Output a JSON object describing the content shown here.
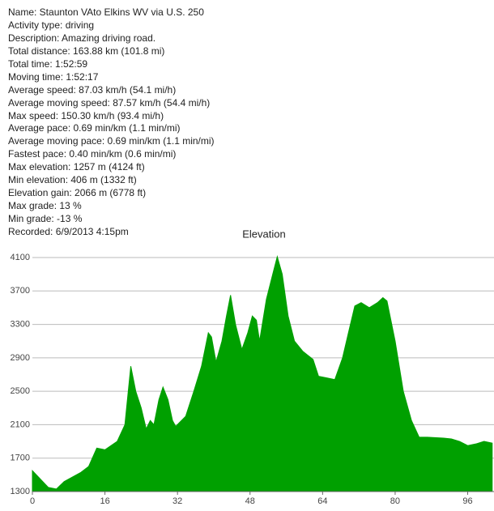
{
  "details": [
    "Name: Staunton VAto Elkins WV via U.S. 250",
    "Activity type: driving",
    "Description: Amazing driving road.",
    "Total distance: 163.88 km (101.8 mi)",
    "Total time: 1:52:59",
    "Moving time: 1:52:17",
    "Average speed: 87.03 km/h (54.1 mi/h)",
    "Average moving speed: 87.57 km/h (54.4 mi/h)",
    "Max speed: 150.30 km/h (93.4 mi/h)",
    "Average pace: 0.69 min/km (1.1 min/mi)",
    "Average moving pace: 0.69 min/km (1.1 min/mi)",
    "Fastest pace: 0.40 min/km (0.6 min/mi)",
    "Max elevation: 1257 m (4124 ft)",
    "Min elevation: 406 m (1332 ft)",
    "Elevation gain: 2066 m (6778 ft)",
    "Max grade: 13 %",
    "Min grade: -13 %",
    "Recorded: 6/9/2013 4:15pm"
  ],
  "chart_data": {
    "type": "area",
    "title": "Elevation",
    "color": "#00a000",
    "x": [
      0,
      3.5,
      5.3,
      7,
      10.7,
      12.4,
      14.2,
      16,
      18.7,
      20.4,
      21.7,
      22.8,
      24,
      25.1,
      26,
      26.8,
      27.9,
      28.8,
      29.9,
      30.9,
      31.6,
      33.8,
      35.6,
      37.3,
      38.8,
      39.5,
      40.5,
      41.8,
      42.8,
      43.7,
      44.8,
      46.2,
      47.5,
      48.5,
      49.4,
      50.1,
      51.6,
      53,
      54,
      55.1,
      56.4,
      57.8,
      59.6,
      61.9,
      63.1,
      64.9,
      66.7,
      68.4,
      69.7,
      71.1,
      72.5,
      74.3,
      76.1,
      77.3,
      78.2,
      80,
      81.8,
      83.6,
      85.3,
      87.1,
      90.7,
      92.4,
      94.2,
      96,
      97.8,
      99.6,
      101.4
    ],
    "y": [
      1550,
      1350,
      1330,
      1420,
      1530,
      1600,
      1820,
      1800,
      1900,
      2100,
      2800,
      2500,
      2300,
      2050,
      2150,
      2100,
      2400,
      2550,
      2400,
      2150,
      2080,
      2200,
      2500,
      2800,
      3200,
      3150,
      2850,
      3100,
      3400,
      3650,
      3300,
      3000,
      3200,
      3400,
      3350,
      3100,
      3600,
      3900,
      4110,
      3900,
      3400,
      3100,
      2980,
      2880,
      2680,
      2660,
      2640,
      2900,
      3200,
      3520,
      3560,
      3500,
      3560,
      3620,
      3580,
      3100,
      2500,
      2150,
      1950,
      1950,
      1940,
      1930,
      1900,
      1850,
      1870,
      1900,
      1880
    ],
    "xlim": [
      0,
      101.8
    ],
    "xticks": [
      0,
      16,
      32,
      48,
      64,
      80,
      96
    ],
    "ylim": [
      1300,
      4100
    ],
    "yticks": [
      1300,
      1700,
      2100,
      2500,
      2900,
      3300,
      3700,
      4100
    ],
    "grid": true
  }
}
